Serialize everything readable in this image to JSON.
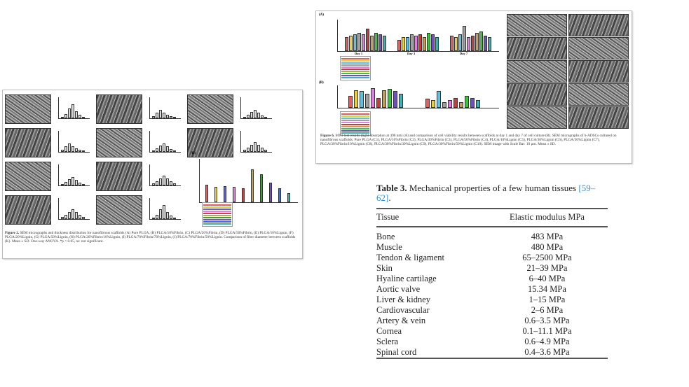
{
  "figure2": {
    "label": "Figure 2.",
    "caption": "SEM micrographs and thickness distribution for nanofibrous scaffolds (A) Pure PLGA, (B) PLGA/10%Fibrin, (C) PLGA/20%Fibrin, (D) PLGA/50%Fibrin, (E) PLGA/10%Lignin, (F) PLGA/20%Lignin, (G) PLGA/50%Lignin, (H) PLGA/20%Fibrin/10%Lignin, (I) PLGA/70%Fibrin/70%Lignin, (J) PLGA/70%Fibrin/50%Lignin. Comparison of fiber diameter between scaffolds (K). Mean ± SD. One-way ANOVA. *p < 0.05, ns: not significant.",
    "panel_k_label": "(K)",
    "bar_colors": [
      "#e06060",
      "#e8d040",
      "#6060e0",
      "#e080e0",
      "#d04040",
      "#c0a060",
      "#40a040",
      "#7050c0",
      "#4070d0",
      "#40b0b0"
    ]
  },
  "figure6": {
    "label": "Figure 6.",
    "caption": "MTT test results (light absorption at 490 nm) (A) and comparison of cell viability results between scaffolds at day 1 and day 7 of cell culture (B). SEM micrographs of h-ADSCs cultured on nanofibrous scaffolds: Pure PLGA (C1), PLGA/10%Fibrin (C2), PLGA/30%Fibrin (C3), PLGA/50%Fibrin (C4), PLGA/10%Lignin (C5), PLGA/30%Lignin (C6), PLGA/50%Lignin (C7), PLGA/30%Fibrin/10%Lignin (C8), PLGA/30%Fibrin/30%Lignin (C9), PLGA/30%Fibrin/50%Lignin (C10). SEM image with Scale Bar: 10 μm. Mean ± SD.",
    "panel_a_label": "(A)",
    "panel_b_label": "(B)",
    "day_labels": [
      "Day 1",
      "Day 3",
      "Day 7"
    ],
    "bar_colors": [
      "#e06060",
      "#e8d040",
      "#60c0e0",
      "#a0a0a0",
      "#e080e0",
      "#c04040",
      "#c0a060",
      "#40c040",
      "#7050c0",
      "#40b0b0"
    ]
  },
  "table3": {
    "label": "Table 3.",
    "title": "Mechanical properties of a few human tissues",
    "refs": "[59–62]",
    "title_end": ".",
    "headers": [
      "Tissue",
      "Elastic modulus MPa"
    ],
    "rows": [
      [
        "Bone",
        "483 MPa"
      ],
      [
        "Muscle",
        "480 MPa"
      ],
      [
        "Tendon & ligament",
        "65–2500 MPa"
      ],
      [
        "Skin",
        "21–39 MPa"
      ],
      [
        "Hyaline cartilage",
        "6–40 MPa"
      ],
      [
        "Aortic valve",
        "15.34 MPa"
      ],
      [
        "Liver & kidney",
        "1–15 MPa"
      ],
      [
        "Cardiovascular",
        "2–6 MPa"
      ],
      [
        "Artery & vein",
        "0.6–3.5 MPa"
      ],
      [
        "Cornea",
        "0.1–11.1 MPa"
      ],
      [
        "Sclera",
        "0.6–4.9 MPa"
      ],
      [
        "Spinal cord",
        "0.4–3.6 MPa"
      ]
    ]
  }
}
